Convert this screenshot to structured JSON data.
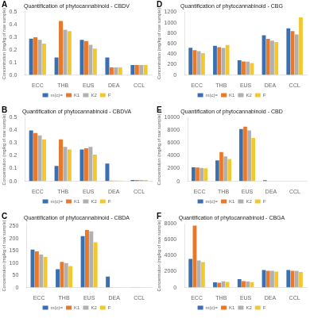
{
  "chart_data": [
    {
      "type": "bar",
      "title": "Quantification of phytocannabinoid - CBDV",
      "ylabel": "Concentration (mg/kg of raw sample)",
      "annotations": [
        "A"
      ],
      "categories": [
        "ECC",
        "THB",
        "EUS",
        "DEA",
        "CCL"
      ],
      "series": [
        {
          "name": "m(c)=",
          "color": "#3A6FB0",
          "values": [
            0.29,
            0.14,
            0.28,
            0.14,
            0.08
          ]
        },
        {
          "name": "K1",
          "color": "#E8792A",
          "values": [
            0.3,
            0.43,
            0.27,
            0.06,
            0.08
          ]
        },
        {
          "name": "K2",
          "color": "#B0B0B0",
          "values": [
            0.28,
            0.36,
            0.24,
            0.06,
            0.08
          ]
        },
        {
          "name": "F",
          "color": "#F2C832",
          "values": [
            0.25,
            0.35,
            0.21,
            0.06,
            0.08
          ]
        }
      ],
      "ylim": [
        0,
        0.5
      ],
      "yticks": [
        {
          "value": 0,
          "label": "0.0"
        },
        0.1,
        0.2,
        0.3,
        0.4,
        0.5
      ],
      "grid": false,
      "legend": "bottom"
    },
    {
      "type": "bar",
      "title": "Quantification of phytocannabinoid - CBDVA",
      "ylabel": "Concentration (mg/kg of raw sample)",
      "annotations": [
        "B"
      ],
      "categories": [
        "ECC",
        "THB",
        "EUS",
        "DEA",
        "CCL"
      ],
      "series": [
        {
          "name": "m(c)=",
          "color": "#3A6FB0",
          "values": [
            0.4,
            0.12,
            0.25,
            0.14,
            0.01
          ]
        },
        {
          "name": "K1",
          "color": "#E8792A",
          "values": [
            0.38,
            0.33,
            0.26,
            0.005,
            0.01
          ]
        },
        {
          "name": "K2",
          "color": "#B0B0B0",
          "values": [
            0.36,
            0.27,
            0.27,
            0.005,
            0.01
          ]
        },
        {
          "name": "F",
          "color": "#F2C832",
          "values": [
            0.33,
            0.25,
            0.21,
            0.005,
            0.01
          ]
        }
      ],
      "ylim": [
        0,
        0.5
      ],
      "yticks": [
        {
          "value": 0,
          "label": "0.0"
        },
        0.1,
        0.2,
        0.3,
        0.4,
        0.5
      ],
      "grid": false,
      "legend": "bottom"
    },
    {
      "type": "bar",
      "title": "Quantification of phytocannabinoid - CBDA",
      "ylabel": "Concentration (mg/kg of raw sample)",
      "annotations": [
        "C"
      ],
      "categories": [
        "ECC",
        "THB",
        "EUS",
        "DEA",
        "CCL"
      ],
      "series": [
        {
          "name": "m(c)=",
          "color": "#3A6FB0",
          "values": [
            155,
            75,
            210,
            45,
            1
          ]
        },
        {
          "name": "K1",
          "color": "#E8792A",
          "values": [
            148,
            105,
            235,
            1,
            1
          ]
        },
        {
          "name": "K2",
          "color": "#B0B0B0",
          "values": [
            135,
            100,
            230,
            1,
            1
          ]
        },
        {
          "name": "F",
          "color": "#F2C832",
          "values": [
            125,
            88,
            185,
            1,
            1
          ]
        }
      ],
      "ylim": [
        0,
        260
      ],
      "yticks": [
        0,
        50,
        100,
        150,
        200,
        250
      ],
      "grid": false,
      "legend": "bottom"
    },
    {
      "type": "bar",
      "title": "Quantification of phytocannabinoid - CBG",
      "ylabel": "Concentration (mg/kg of raw sample)",
      "annotations": [
        "D"
      ],
      "categories": [
        "ECC",
        "THB",
        "EUS",
        "DEA",
        "CCL"
      ],
      "series": [
        {
          "name": "m(c)=",
          "color": "#3A6FB0",
          "values": [
            520,
            560,
            280,
            760,
            890
          ]
        },
        {
          "name": "K1",
          "color": "#E8792A",
          "values": [
            475,
            530,
            260,
            690,
            840
          ]
        },
        {
          "name": "K2",
          "color": "#B0B0B0",
          "values": [
            455,
            515,
            255,
            655,
            775
          ]
        },
        {
          "name": "F",
          "color": "#F2C832",
          "values": [
            420,
            575,
            230,
            630,
            1100
          ]
        }
      ],
      "ylim": [
        0,
        1200
      ],
      "yticks": [
        0,
        200,
        400,
        600,
        800,
        1000,
        1200
      ],
      "grid": false,
      "legend": "bottom"
    },
    {
      "type": "bar",
      "title": "Quantification of phytocannabinoid - CBD",
      "ylabel": "Concentration (mg/kg of raw sample)",
      "annotations": [
        "E"
      ],
      "categories": [
        "ECC",
        "THB",
        "EUS",
        "DEA",
        "CCL"
      ],
      "series": [
        {
          "name": "m(c)=",
          "color": "#3A6FB0",
          "values": [
            2200,
            3300,
            8200,
            180,
            1
          ]
        },
        {
          "name": "K1",
          "color": "#E8792A",
          "values": [
            2150,
            4600,
            8600,
            1,
            1
          ]
        },
        {
          "name": "K2",
          "color": "#B0B0B0",
          "values": [
            2100,
            3900,
            8000,
            1,
            1
          ]
        },
        {
          "name": "F",
          "color": "#F2C832",
          "values": [
            2050,
            3500,
            6800,
            1,
            1
          ]
        }
      ],
      "ylim": [
        0,
        10000
      ],
      "yticks": [
        0,
        2000,
        4000,
        6000,
        8000,
        10000
      ],
      "grid": false,
      "legend": "bottom"
    },
    {
      "type": "bar",
      "title": "Quantification of phytocannabinoid - CBGA",
      "ylabel": "Concentration (mg/kg of raw sample)",
      "annotations": [
        "F"
      ],
      "categories": [
        "ECC",
        "THB",
        "EUS",
        "DEA",
        "CCL"
      ],
      "series": [
        {
          "name": "m(c)=",
          "color": "#3A6FB0",
          "values": [
            3600,
            650,
            1050,
            2200,
            2200
          ]
        },
        {
          "name": "K1",
          "color": "#E8792A",
          "values": [
            7800,
            600,
            800,
            2100,
            2100
          ]
        },
        {
          "name": "K2",
          "color": "#B0B0B0",
          "values": [
            3400,
            780,
            770,
            2100,
            2100
          ]
        },
        {
          "name": "F",
          "color": "#F2C832",
          "values": [
            3200,
            700,
            680,
            2000,
            1950
          ]
        }
      ],
      "ylim": [
        0,
        8000
      ],
      "yticks": [
        0,
        2000,
        4000,
        6000,
        8000
      ],
      "grid": false,
      "legend": "bottom"
    }
  ]
}
